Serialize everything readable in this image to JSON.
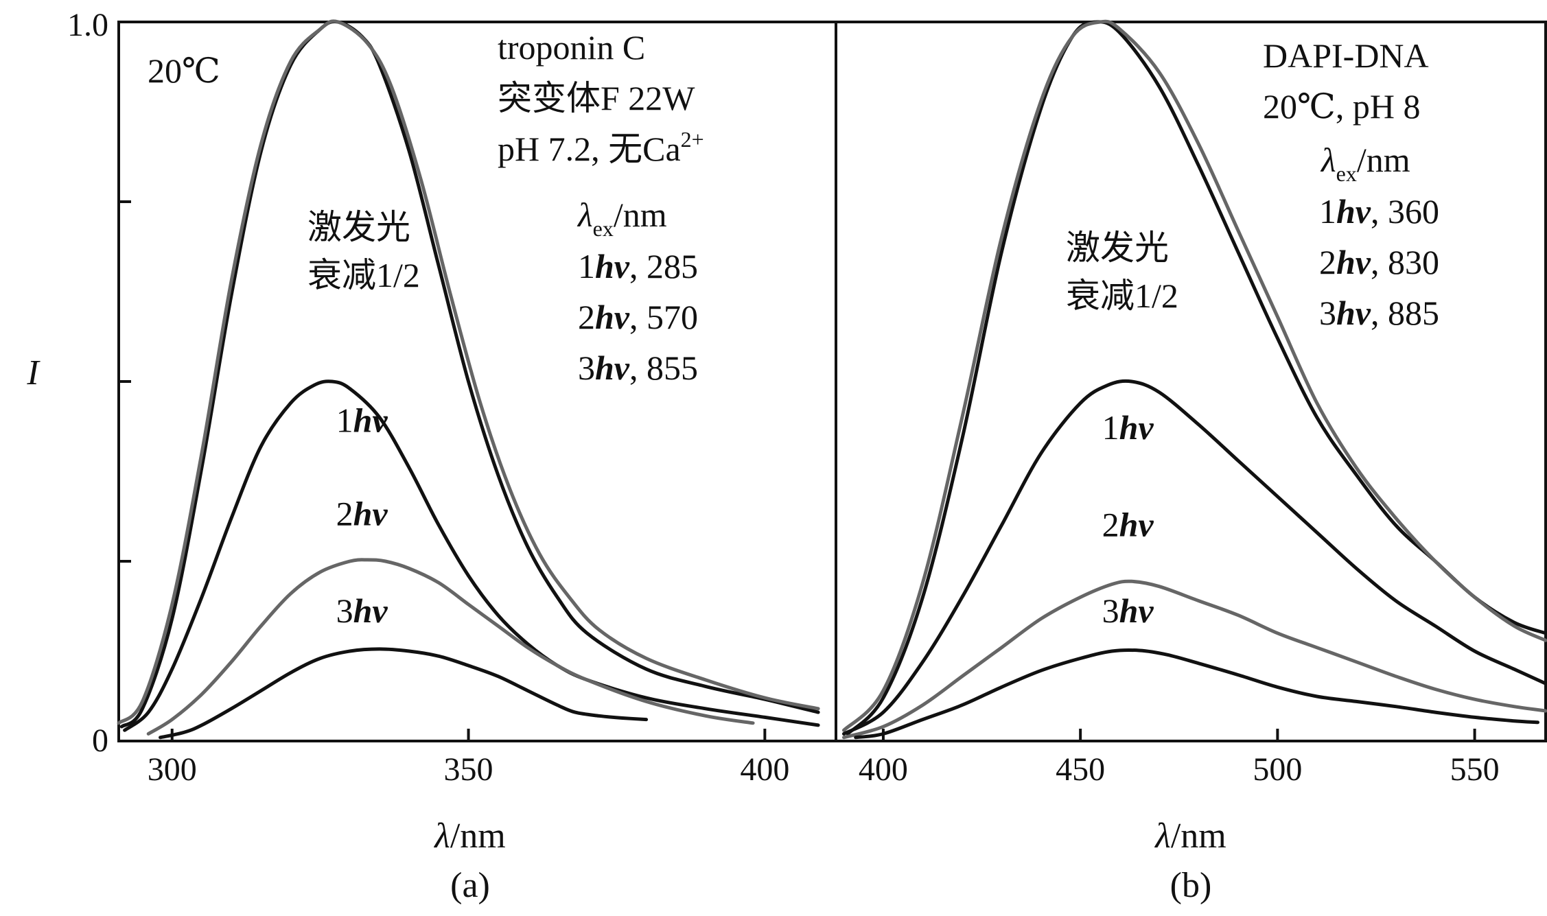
{
  "y_axis": {
    "label": "I",
    "tick_top": "1.0",
    "tick_bottom": "0"
  },
  "colors": {
    "black_curve": "#111111",
    "gray_curve": "#666666",
    "axis": "#111111"
  },
  "chart_data": [
    {
      "type": "line",
      "panel_label": "(a)",
      "xlabel": "λ/nm",
      "ylabel": "I",
      "xlim": [
        291,
        412
      ],
      "ylim": [
        0,
        1.0
      ],
      "x_ticks": [
        300,
        350,
        400
      ],
      "y_ticks": [
        0,
        0.25,
        0.5,
        0.75,
        1.0
      ],
      "annotations": {
        "condition": "20℃",
        "sample_line1": "troponin C",
        "sample_line2": "突变体F 22W",
        "sample_line3_prefix": "pH 7.2, 无Ca",
        "sample_line3_sup": "2+",
        "attenuation_line1": "激发光",
        "attenuation_line2": "衰减1/2",
        "lambda_ex_label": "/nm",
        "excitation": [
          {
            "order": "1",
            "wavelength": ", 285"
          },
          {
            "order": "2",
            "wavelength": ", 570"
          },
          {
            "order": "3",
            "wavelength": ", 855"
          }
        ],
        "curve_labels": [
          {
            "order": "1",
            "x": 332,
            "y": 0.43
          },
          {
            "order": "2",
            "x": 332,
            "y": 0.3
          },
          {
            "order": "3",
            "x": 332,
            "y": 0.165
          }
        ]
      },
      "series": [
        {
          "color": "black",
          "values": [
            [
              291.5,
              0.02
            ],
            [
              295,
              0.045
            ],
            [
              300,
              0.17
            ],
            [
              305,
              0.38
            ],
            [
              310,
              0.62
            ],
            [
              315,
              0.82
            ],
            [
              320,
              0.94
            ],
            [
              325,
              0.99
            ],
            [
              328,
              1.0
            ],
            [
              332,
              0.98
            ],
            [
              335,
              0.94
            ],
            [
              340,
              0.82
            ],
            [
              345,
              0.66
            ],
            [
              350,
              0.5
            ],
            [
              355,
              0.37
            ],
            [
              360,
              0.27
            ],
            [
              365,
              0.2
            ],
            [
              370,
              0.15
            ],
            [
              380,
              0.1
            ],
            [
              390,
              0.076
            ],
            [
              400,
              0.058
            ],
            [
              409,
              0.04
            ]
          ]
        },
        {
          "color": "gray",
          "values": [
            [
              291,
              0.025
            ],
            [
              295,
              0.055
            ],
            [
              300,
              0.19
            ],
            [
              305,
              0.4
            ],
            [
              310,
              0.64
            ],
            [
              315,
              0.83
            ],
            [
              320,
              0.945
            ],
            [
              325,
              0.99
            ],
            [
              328,
              1.0
            ],
            [
              333,
              0.97
            ],
            [
              337,
              0.91
            ],
            [
              342,
              0.78
            ],
            [
              347,
              0.62
            ],
            [
              352,
              0.47
            ],
            [
              357,
              0.35
            ],
            [
              362,
              0.26
            ],
            [
              367,
              0.2
            ],
            [
              372,
              0.155
            ],
            [
              380,
              0.115
            ],
            [
              390,
              0.085
            ],
            [
              400,
              0.06
            ],
            [
              409,
              0.045
            ]
          ]
        },
        {
          "color": "black",
          "values": [
            [
              292,
              0.015
            ],
            [
              296,
              0.04
            ],
            [
              300,
              0.1
            ],
            [
              305,
              0.2
            ],
            [
              310,
              0.31
            ],
            [
              315,
              0.41
            ],
            [
              320,
              0.47
            ],
            [
              324,
              0.495
            ],
            [
              327,
              0.5
            ],
            [
              330,
              0.49
            ],
            [
              335,
              0.45
            ],
            [
              340,
              0.38
            ],
            [
              345,
              0.3
            ],
            [
              350,
              0.23
            ],
            [
              355,
              0.175
            ],
            [
              360,
              0.135
            ],
            [
              365,
              0.105
            ],
            [
              370,
              0.085
            ],
            [
              380,
              0.06
            ],
            [
              390,
              0.045
            ],
            [
              400,
              0.033
            ],
            [
              409,
              0.022
            ]
          ]
        },
        {
          "color": "gray",
          "values": [
            [
              296,
              0.01
            ],
            [
              300,
              0.03
            ],
            [
              305,
              0.065
            ],
            [
              310,
              0.11
            ],
            [
              315,
              0.16
            ],
            [
              320,
              0.205
            ],
            [
              325,
              0.235
            ],
            [
              330,
              0.25
            ],
            [
              333,
              0.252
            ],
            [
              336,
              0.25
            ],
            [
              340,
              0.24
            ],
            [
              345,
              0.22
            ],
            [
              350,
              0.19
            ],
            [
              355,
              0.16
            ],
            [
              360,
              0.13
            ],
            [
              365,
              0.105
            ],
            [
              370,
              0.085
            ],
            [
              380,
              0.055
            ],
            [
              390,
              0.035
            ],
            [
              398,
              0.025
            ]
          ]
        },
        {
          "color": "black",
          "values": [
            [
              298,
              0.005
            ],
            [
              302,
              0.012
            ],
            [
              305,
              0.022
            ],
            [
              310,
              0.045
            ],
            [
              315,
              0.07
            ],
            [
              320,
              0.095
            ],
            [
              325,
              0.115
            ],
            [
              330,
              0.125
            ],
            [
              335,
              0.128
            ],
            [
              340,
              0.125
            ],
            [
              345,
              0.118
            ],
            [
              350,
              0.105
            ],
            [
              355,
              0.09
            ],
            [
              360,
              0.07
            ],
            [
              365,
              0.05
            ],
            [
              368,
              0.04
            ],
            [
              372,
              0.035
            ],
            [
              376,
              0.032
            ],
            [
              380,
              0.03
            ]
          ]
        }
      ]
    },
    {
      "type": "line",
      "panel_label": "(b)",
      "xlabel": "λ/nm",
      "ylabel": "I",
      "xlim": [
        388,
        568
      ],
      "ylim": [
        0,
        1.0
      ],
      "x_ticks": [
        400,
        450,
        500,
        550
      ],
      "y_ticks": [
        0,
        0.25,
        0.5,
        0.75,
        1.0
      ],
      "annotations": {
        "sample_line1": "DAPI-DNA",
        "sample_line2": "20℃, pH 8",
        "attenuation_line1": "激发光",
        "attenuation_line2": "衰减1/2",
        "lambda_ex_label": "/nm",
        "excitation": [
          {
            "order": "1",
            "wavelength": ", 360"
          },
          {
            "order": "2",
            "wavelength": ", 830"
          },
          {
            "order": "3",
            "wavelength": ", 885"
          }
        ],
        "curve_labels": [
          {
            "order": "1",
            "x": 462,
            "y": 0.42
          },
          {
            "order": "2",
            "x": 462,
            "y": 0.285
          },
          {
            "order": "3",
            "x": 462,
            "y": 0.165
          }
        ]
      },
      "series": [
        {
          "color": "black",
          "values": [
            [
              391,
              0.01
            ],
            [
              400,
              0.06
            ],
            [
              410,
              0.2
            ],
            [
              420,
              0.42
            ],
            [
              430,
              0.68
            ],
            [
              440,
              0.88
            ],
            [
              448,
              0.98
            ],
            [
              454,
              1.0
            ],
            [
              460,
              0.985
            ],
            [
              470,
              0.91
            ],
            [
              480,
              0.8
            ],
            [
              490,
              0.68
            ],
            [
              500,
              0.56
            ],
            [
              510,
              0.45
            ],
            [
              520,
              0.37
            ],
            [
              530,
              0.3
            ],
            [
              540,
              0.25
            ],
            [
              550,
              0.2
            ],
            [
              560,
              0.165
            ],
            [
              568,
              0.15
            ]
          ]
        },
        {
          "color": "gray",
          "values": [
            [
              390,
              0.015
            ],
            [
              400,
              0.07
            ],
            [
              410,
              0.22
            ],
            [
              420,
              0.45
            ],
            [
              430,
              0.7
            ],
            [
              440,
              0.89
            ],
            [
              448,
              0.98
            ],
            [
              455,
              1.0
            ],
            [
              460,
              0.99
            ],
            [
              470,
              0.93
            ],
            [
              480,
              0.83
            ],
            [
              490,
              0.71
            ],
            [
              500,
              0.59
            ],
            [
              510,
              0.47
            ],
            [
              520,
              0.38
            ],
            [
              530,
              0.31
            ],
            [
              540,
              0.25
            ],
            [
              550,
              0.2
            ],
            [
              560,
              0.16
            ],
            [
              568,
              0.14
            ]
          ]
        },
        {
          "color": "black",
          "values": [
            [
              390,
              0.01
            ],
            [
              400,
              0.04
            ],
            [
              410,
              0.11
            ],
            [
              420,
              0.2
            ],
            [
              430,
              0.3
            ],
            [
              440,
              0.4
            ],
            [
              450,
              0.47
            ],
            [
              457,
              0.495
            ],
            [
              463,
              0.5
            ],
            [
              470,
              0.485
            ],
            [
              480,
              0.44
            ],
            [
              490,
              0.39
            ],
            [
              500,
              0.34
            ],
            [
              510,
              0.29
            ],
            [
              520,
              0.24
            ],
            [
              530,
              0.195
            ],
            [
              540,
              0.16
            ],
            [
              550,
              0.125
            ],
            [
              560,
              0.1
            ],
            [
              568,
              0.08
            ]
          ]
        },
        {
          "color": "gray",
          "values": [
            [
              390,
              0.005
            ],
            [
              400,
              0.02
            ],
            [
              410,
              0.05
            ],
            [
              420,
              0.09
            ],
            [
              430,
              0.13
            ],
            [
              440,
              0.17
            ],
            [
              450,
              0.2
            ],
            [
              458,
              0.218
            ],
            [
              463,
              0.222
            ],
            [
              470,
              0.215
            ],
            [
              480,
              0.195
            ],
            [
              490,
              0.175
            ],
            [
              500,
              0.15
            ],
            [
              510,
              0.13
            ],
            [
              520,
              0.11
            ],
            [
              530,
              0.09
            ],
            [
              540,
              0.072
            ],
            [
              550,
              0.058
            ],
            [
              560,
              0.048
            ],
            [
              568,
              0.042
            ]
          ]
        },
        {
          "color": "black",
          "values": [
            [
              393,
              0.005
            ],
            [
              400,
              0.01
            ],
            [
              410,
              0.03
            ],
            [
              420,
              0.05
            ],
            [
              430,
              0.075
            ],
            [
              440,
              0.098
            ],
            [
              450,
              0.115
            ],
            [
              458,
              0.125
            ],
            [
              465,
              0.126
            ],
            [
              472,
              0.12
            ],
            [
              480,
              0.108
            ],
            [
              490,
              0.092
            ],
            [
              500,
              0.075
            ],
            [
              510,
              0.062
            ],
            [
              520,
              0.055
            ],
            [
              530,
              0.048
            ],
            [
              540,
              0.04
            ],
            [
              550,
              0.033
            ],
            [
              560,
              0.028
            ],
            [
              566,
              0.026
            ]
          ]
        }
      ]
    }
  ]
}
